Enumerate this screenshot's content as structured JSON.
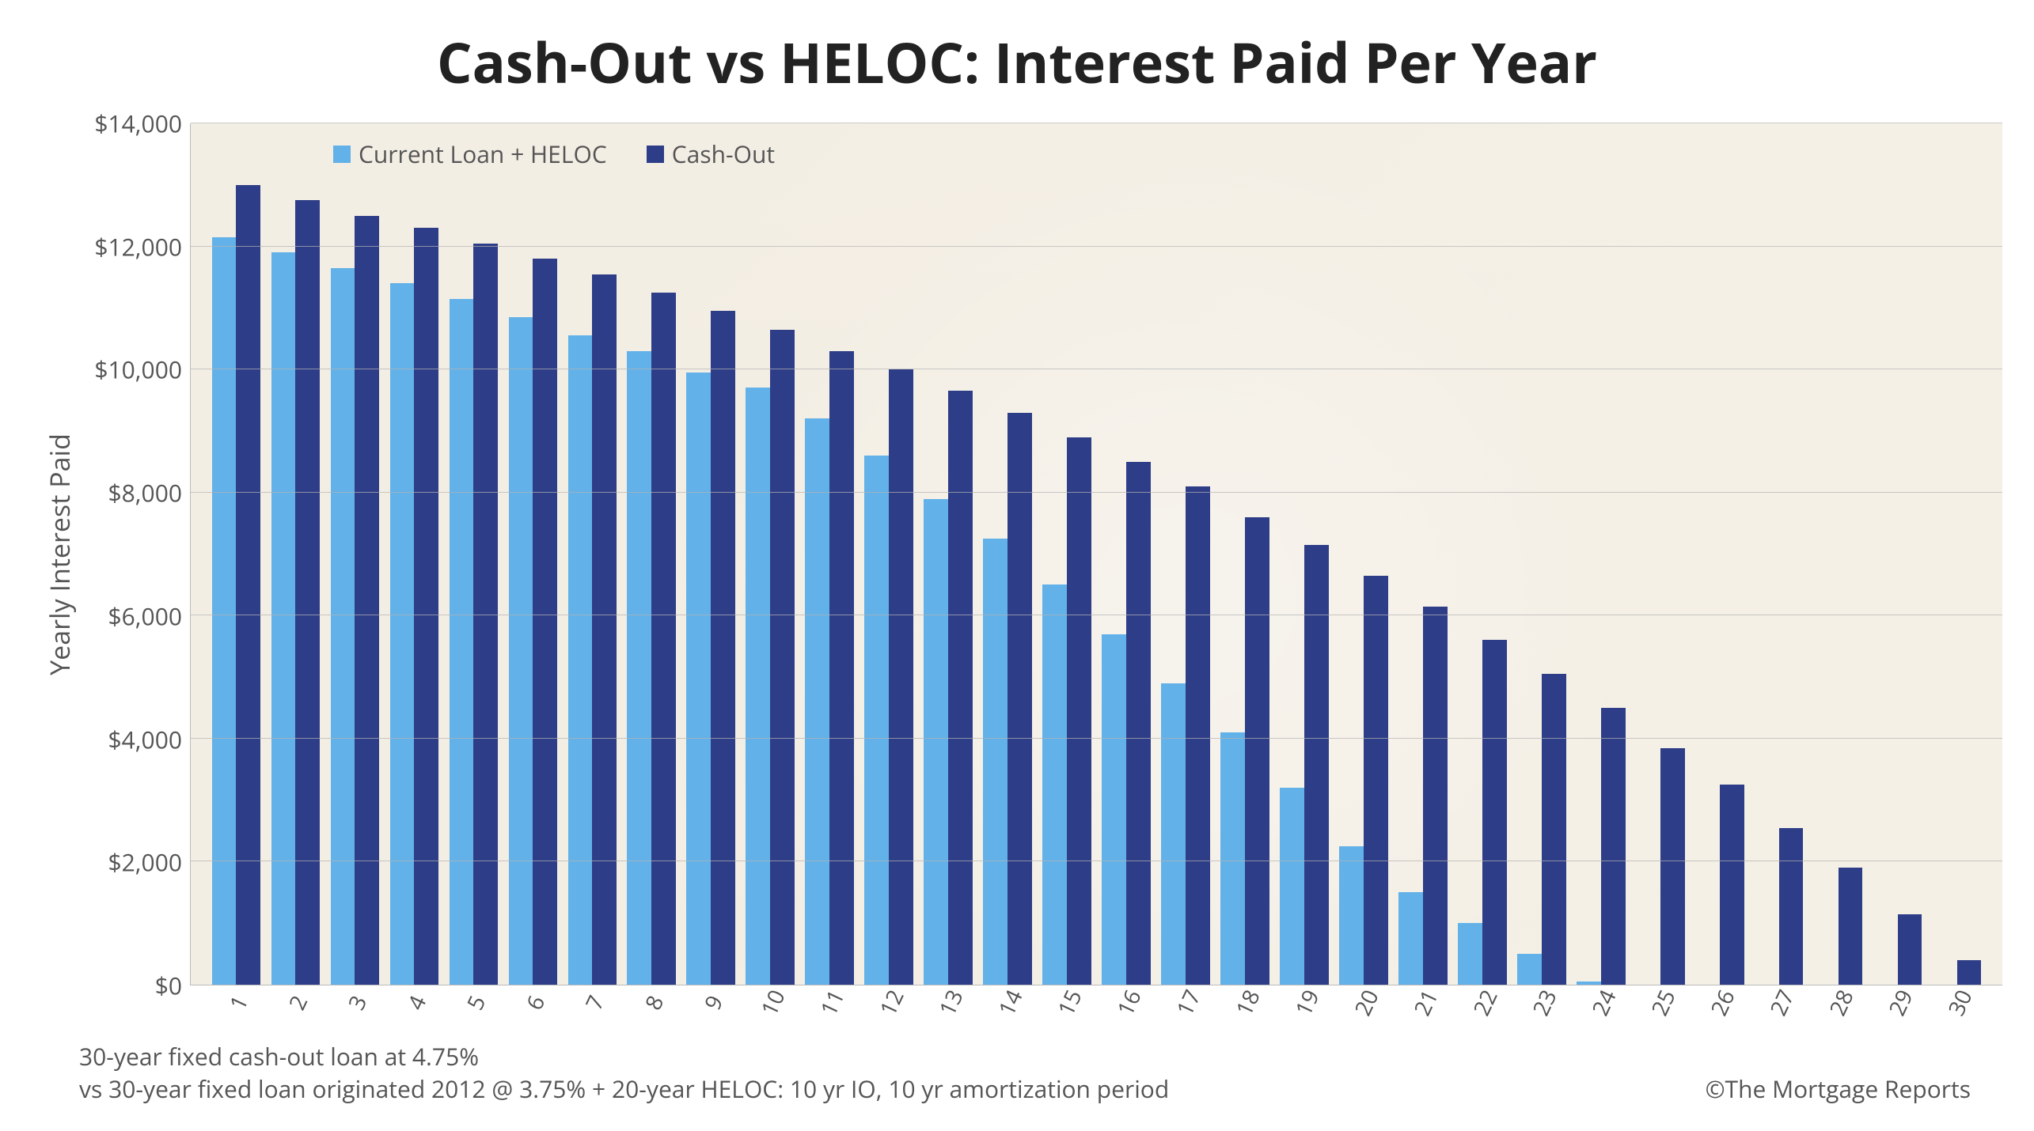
{
  "chart": {
    "type": "bar",
    "title": "Cash-Out vs HELOC: Interest Paid Per Year",
    "title_fontsize": 70,
    "ylabel": "Yearly Interest Paid",
    "label_fontsize": 34,
    "tick_fontsize": 30,
    "xtick_fontsize": 28,
    "ylim": [
      0,
      14000
    ],
    "ytick_step": 2000,
    "ytick_labels": [
      "$0",
      "$2,000",
      "$4,000",
      "$6,000",
      "$8,000",
      "$10,000",
      "$12,000",
      "$14,000"
    ],
    "categories": [
      "1",
      "2",
      "3",
      "4",
      "5",
      "6",
      "7",
      "8",
      "9",
      "10",
      "11",
      "12",
      "13",
      "14",
      "15",
      "16",
      "17",
      "18",
      "19",
      "20",
      "21",
      "22",
      "23",
      "24",
      "25",
      "26",
      "27",
      "28",
      "29",
      "30"
    ],
    "series": [
      {
        "name": "Current Loan + HELOC",
        "color": "#62b1e8",
        "values": [
          12150,
          11900,
          11650,
          11400,
          11150,
          10850,
          10550,
          10300,
          9950,
          9700,
          9200,
          8600,
          7900,
          7250,
          6500,
          5700,
          4900,
          4100,
          3200,
          2250,
          1500,
          1000,
          500,
          50,
          0,
          0,
          0,
          0,
          0,
          0
        ]
      },
      {
        "name": "Cash-Out",
        "color": "#2e3d87",
        "values": [
          13000,
          12750,
          12500,
          12300,
          12050,
          11800,
          11550,
          11250,
          10950,
          10650,
          10300,
          10000,
          9650,
          9300,
          8900,
          8500,
          8100,
          7600,
          7150,
          6650,
          6150,
          5600,
          5050,
          4500,
          3850,
          3250,
          2550,
          1900,
          1150,
          400
        ]
      }
    ],
    "legend_fontsize": 30,
    "background_color": "#ffffff",
    "plot_tint": "#f5f0e6",
    "grid_color": "rgba(180,180,180,0.7)",
    "axis_color": "#bbbbbb",
    "text_color": "#555555",
    "bar_width_ratio": 0.46
  },
  "footer": {
    "note_line1": "30-year fixed cash-out loan at 4.75%",
    "note_line2": "vs 30-year fixed loan originated 2012 @ 3.75% + 20-year HELOC: 10 yr IO, 10 yr amortization period",
    "credit": "©The Mortgage Reports",
    "fontsize": 30
  }
}
